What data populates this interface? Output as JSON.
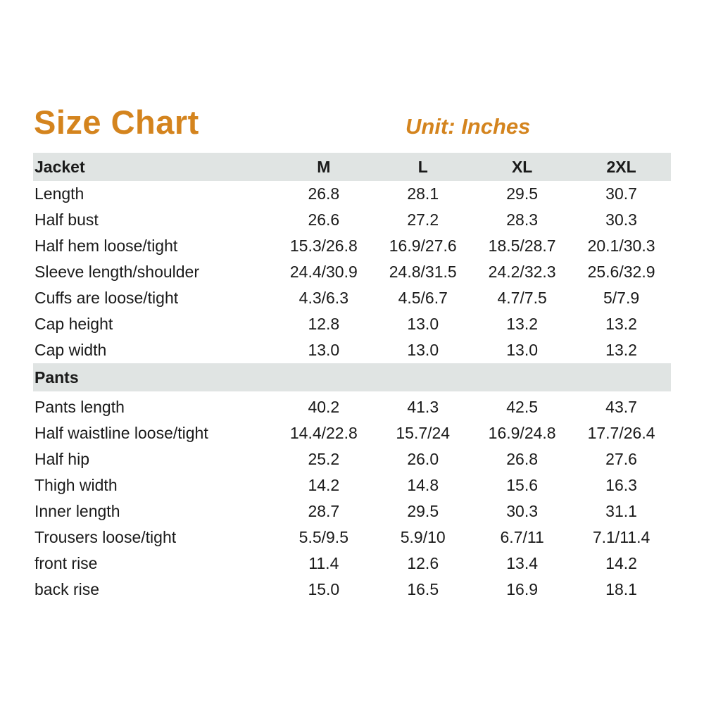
{
  "title": "Size Chart",
  "unit": "Unit: Inches",
  "sizes": [
    "M",
    "L",
    "XL",
    "2XL"
  ],
  "jacket": {
    "label": "Jacket",
    "rows": [
      {
        "label": "Length",
        "values": [
          "26.8",
          "28.1",
          "29.5",
          "30.7"
        ]
      },
      {
        "label": "Half bust",
        "values": [
          "26.6",
          "27.2",
          "28.3",
          "30.3"
        ]
      },
      {
        "label": "Half hem loose/tight",
        "values": [
          "15.3/26.8",
          "16.9/27.6",
          "18.5/28.7",
          "20.1/30.3"
        ]
      },
      {
        "label": "Sleeve length/shoulder",
        "values": [
          "24.4/30.9",
          "24.8/31.5",
          "24.2/32.3",
          "25.6/32.9"
        ]
      },
      {
        "label": "Cuffs are loose/tight",
        "values": [
          "4.3/6.3",
          "4.5/6.7",
          "4.7/7.5",
          "5/7.9"
        ]
      },
      {
        "label": "Cap height",
        "values": [
          "12.8",
          "13.0",
          "13.2",
          "13.2"
        ]
      },
      {
        "label": "Cap width",
        "values": [
          "13.0",
          "13.0",
          "13.0",
          "13.2"
        ]
      }
    ]
  },
  "pants": {
    "label": "Pants",
    "rows": [
      {
        "label": "Pants length",
        "values": [
          "40.2",
          "41.3",
          "42.5",
          "43.7"
        ]
      },
      {
        "label": "Half waistline loose/tight",
        "values": [
          "14.4/22.8",
          "15.7/24",
          "16.9/24.8",
          "17.7/26.4"
        ]
      },
      {
        "label": "Half hip",
        "values": [
          "25.2",
          "26.0",
          "26.8",
          "27.6"
        ]
      },
      {
        "label": "Thigh width",
        "values": [
          "14.2",
          "14.8",
          "15.6",
          "16.3"
        ]
      },
      {
        "label": "Inner length",
        "values": [
          "28.7",
          "29.5",
          "30.3",
          "31.1"
        ]
      },
      {
        "label": "Trousers loose/tight",
        "values": [
          "5.5/9.5",
          "5.9/10",
          "6.7/11",
          "7.1/11.4"
        ]
      },
      {
        "label": "front rise",
        "values": [
          "11.4",
          "12.6",
          "13.4",
          "14.2"
        ]
      },
      {
        "label": "back rise",
        "values": [
          "15.0",
          "16.5",
          "16.9",
          "18.1"
        ]
      }
    ]
  },
  "colors": {
    "accent": "#d4841e",
    "header_band": "#e0e4e3",
    "text": "#1a1a1a"
  }
}
